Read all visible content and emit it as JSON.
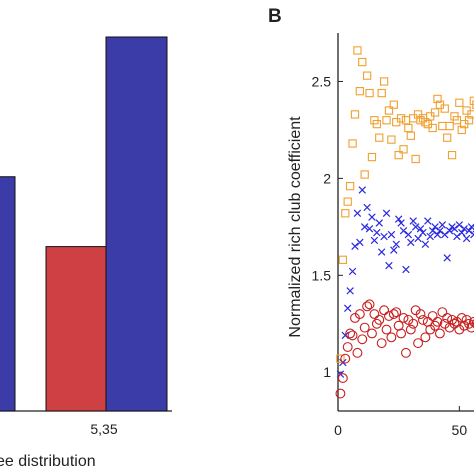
{
  "chart_data": [
    {
      "type": "bar",
      "panel_label": "",
      "xlabel": "ee distribution",
      "ylabel": "",
      "categories": [
        "",
        "5,35"
      ],
      "series": [
        {
          "color": "#ce4044",
          "values": [
            null,
            0.4
          ]
        },
        {
          "color": "#3c3ca8",
          "values": [
            0.57,
            0.91
          ]
        }
      ],
      "ylim": [
        0,
        1
      ],
      "grid": false,
      "legend": "none"
    },
    {
      "type": "scatter",
      "panel_label": "B",
      "xlabel": "",
      "ylabel": "Normalized rich club coefficient",
      "x_ticks": [
        "0",
        "50"
      ],
      "y_ticks": [
        "1",
        "1.5",
        "2",
        "2.5"
      ],
      "xlim": [
        0,
        75
      ],
      "ylim": [
        0.8,
        2.75
      ],
      "grid": false,
      "legend": "none",
      "series": [
        {
          "marker": "square",
          "color": "#f0a030",
          "points": [
            [
              1,
              1.07
            ],
            [
              2,
              1.58
            ],
            [
              3,
              1.82
            ],
            [
              4,
              1.88
            ],
            [
              5,
              1.96
            ],
            [
              6,
              2.18
            ],
            [
              7,
              2.33
            ],
            [
              8,
              2.66
            ],
            [
              9,
              2.45
            ],
            [
              10,
              2.6
            ],
            [
              11,
              2.02
            ],
            [
              12,
              2.53
            ],
            [
              13,
              2.44
            ],
            [
              14,
              2.11
            ],
            [
              15,
              2.3
            ],
            [
              16,
              2.28
            ],
            [
              17,
              2.21
            ],
            [
              18,
              2.44
            ],
            [
              19,
              2.5
            ],
            [
              20,
              2.3
            ],
            [
              21,
              2.35
            ],
            [
              22,
              2.2
            ],
            [
              23,
              2.38
            ],
            [
              24,
              2.29
            ],
            [
              25,
              2.12
            ],
            [
              26,
              2.31
            ],
            [
              27,
              2.15
            ],
            [
              28,
              2.3
            ],
            [
              29,
              2.26
            ],
            [
              30,
              2.22
            ],
            [
              31,
              2.31
            ],
            [
              32,
              2.1
            ],
            [
              33,
              2.33
            ],
            [
              34,
              2.3
            ],
            [
              35,
              2.31
            ],
            [
              36,
              2.29
            ],
            [
              37,
              2.28
            ],
            [
              38,
              2.32
            ],
            [
              39,
              2.26
            ],
            [
              40,
              2.34
            ],
            [
              41,
              2.41
            ],
            [
              42,
              2.38
            ],
            [
              43,
              2.27
            ],
            [
              44,
              2.36
            ],
            [
              45,
              2.21
            ],
            [
              46,
              2.27
            ],
            [
              47,
              2.12
            ],
            [
              48,
              2.32
            ],
            [
              49,
              2.3
            ],
            [
              50,
              2.39
            ],
            [
              51,
              2.25
            ],
            [
              52,
              2.28
            ],
            [
              53,
              2.35
            ],
            [
              54,
              2.3
            ],
            [
              55,
              2.33
            ],
            [
              56,
              2.4
            ],
            [
              57,
              2.38
            ],
            [
              58,
              2.36
            ],
            [
              59,
              2.39
            ]
          ]
        },
        {
          "marker": "x",
          "color": "#2a2ae0",
          "points": [
            [
              1,
              0.99
            ],
            [
              2,
              1.05
            ],
            [
              3,
              1.19
            ],
            [
              4,
              1.33
            ],
            [
              5,
              1.42
            ],
            [
              6,
              1.52
            ],
            [
              7,
              1.65
            ],
            [
              8,
              1.82
            ],
            [
              9,
              1.67
            ],
            [
              10,
              1.94
            ],
            [
              11,
              1.75
            ],
            [
              12,
              1.85
            ],
            [
              13,
              1.74
            ],
            [
              14,
              1.8
            ],
            [
              15,
              1.68
            ],
            [
              16,
              1.72
            ],
            [
              17,
              1.77
            ],
            [
              18,
              1.62
            ],
            [
              19,
              1.7
            ],
            [
              20,
              1.82
            ],
            [
              21,
              1.55
            ],
            [
              22,
              1.71
            ],
            [
              23,
              1.63
            ],
            [
              24,
              1.66
            ],
            [
              25,
              1.79
            ],
            [
              26,
              1.77
            ],
            [
              27,
              1.73
            ],
            [
              28,
              1.53
            ],
            [
              29,
              1.71
            ],
            [
              30,
              1.67
            ],
            [
              31,
              1.78
            ],
            [
              32,
              1.75
            ],
            [
              33,
              1.69
            ],
            [
              34,
              1.74
            ],
            [
              35,
              1.72
            ],
            [
              36,
              1.66
            ],
            [
              37,
              1.78
            ],
            [
              38,
              1.7
            ],
            [
              39,
              1.73
            ],
            [
              40,
              1.75
            ],
            [
              41,
              1.71
            ],
            [
              42,
              1.73
            ],
            [
              43,
              1.76
            ],
            [
              44,
              1.71
            ],
            [
              45,
              1.59
            ],
            [
              46,
              1.73
            ],
            [
              47,
              1.75
            ],
            [
              48,
              1.74
            ],
            [
              49,
              1.7
            ],
            [
              50,
              1.76
            ],
            [
              51,
              1.72
            ],
            [
              52,
              1.74
            ],
            [
              53,
              1.69
            ],
            [
              54,
              1.73
            ],
            [
              55,
              1.75
            ],
            [
              56,
              1.71
            ],
            [
              57,
              1.74
            ],
            [
              58,
              1.72
            ],
            [
              59,
              1.73
            ]
          ]
        },
        {
          "marker": "circle",
          "color": "#c81e1e",
          "points": [
            [
              1,
              0.89
            ],
            [
              2,
              0.97
            ],
            [
              3,
              1.07
            ],
            [
              4,
              1.13
            ],
            [
              5,
              1.2
            ],
            [
              6,
              1.19
            ],
            [
              7,
              1.28
            ],
            [
              8,
              1.1
            ],
            [
              9,
              1.3
            ],
            [
              10,
              1.17
            ],
            [
              11,
              1.23
            ],
            [
              12,
              1.34
            ],
            [
              13,
              1.35
            ],
            [
              14,
              1.2
            ],
            [
              15,
              1.3
            ],
            [
              16,
              1.25
            ],
            [
              17,
              1.27
            ],
            [
              18,
              1.15
            ],
            [
              19,
              1.32
            ],
            [
              20,
              1.22
            ],
            [
              21,
              1.29
            ],
            [
              22,
              1.18
            ],
            [
              23,
              1.3
            ],
            [
              24,
              1.31
            ],
            [
              25,
              1.24
            ],
            [
              26,
              1.2
            ],
            [
              27,
              1.28
            ],
            [
              28,
              1.1
            ],
            [
              29,
              1.27
            ],
            [
              30,
              1.22
            ],
            [
              31,
              1.25
            ],
            [
              32,
              1.32
            ],
            [
              33,
              1.15
            ],
            [
              34,
              1.3
            ],
            [
              35,
              1.27
            ],
            [
              36,
              1.18
            ],
            [
              37,
              1.26
            ],
            [
              38,
              1.22
            ],
            [
              39,
              1.29
            ],
            [
              40,
              1.24
            ],
            [
              41,
              1.26
            ],
            [
              42,
              1.2
            ],
            [
              43,
              1.31
            ],
            [
              44,
              1.25
            ],
            [
              45,
              1.28
            ],
            [
              46,
              1.23
            ],
            [
              47,
              1.27
            ],
            [
              48,
              1.25
            ],
            [
              49,
              1.26
            ],
            [
              50,
              1.22
            ],
            [
              51,
              1.28
            ],
            [
              52,
              1.24
            ],
            [
              53,
              1.27
            ],
            [
              54,
              1.25
            ],
            [
              55,
              1.23
            ],
            [
              56,
              1.26
            ],
            [
              57,
              1.25
            ],
            [
              58,
              1.27
            ],
            [
              59,
              1.24
            ]
          ]
        }
      ]
    }
  ]
}
